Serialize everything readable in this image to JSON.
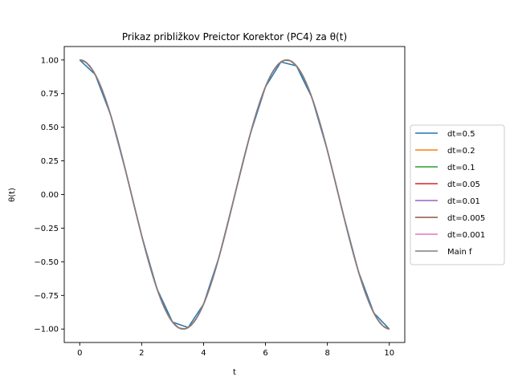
{
  "chart_data": {
    "type": "line",
    "title": "Prikaz približkov Preictor Korektor (PC4) za θ(t)",
    "xlabel": "t",
    "ylabel": "θ(t)",
    "xlim": [
      -0.5,
      10.5
    ],
    "ylim": [
      -1.1,
      1.1
    ],
    "xticks": [
      0,
      2,
      4,
      6,
      8,
      10
    ],
    "xtick_labels": [
      "0",
      "2",
      "4",
      "6",
      "8",
      "10"
    ],
    "yticks": [
      1.0,
      0.75,
      0.5,
      0.25,
      0.0,
      -0.25,
      -0.5,
      -0.75,
      -1.0
    ],
    "ytick_labels": [
      "1.00",
      "0.75",
      "0.50",
      "0.25",
      "0.00",
      "−0.25",
      "−0.50",
      "−0.75",
      "−1.00"
    ],
    "grid": false,
    "legend_position": "center-right outside",
    "function": "cos(0.94*t)",
    "series": [
      {
        "name": "dt=0.5",
        "color": "#1f77b4",
        "dt": 0.5
      },
      {
        "name": "dt=0.2",
        "color": "#ff7f0e",
        "dt": 0.2
      },
      {
        "name": "dt=0.1",
        "color": "#2ca02c",
        "dt": 0.1
      },
      {
        "name": "dt=0.05",
        "color": "#d62728",
        "dt": 0.05
      },
      {
        "name": "dt=0.01",
        "color": "#9467bd",
        "dt": 0.01
      },
      {
        "name": "dt=0.005",
        "color": "#8c564b",
        "dt": 0.005
      },
      {
        "name": "dt=0.001",
        "color": "#e377c2",
        "dt": 0.001
      },
      {
        "name": "Main f",
        "color": "#7f7f7f",
        "dt": 0.001
      }
    ]
  }
}
